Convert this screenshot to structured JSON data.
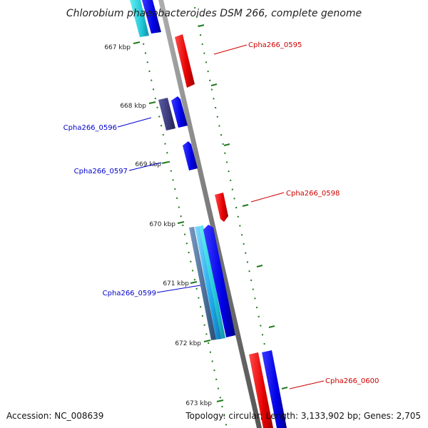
{
  "title": "Chlorobium phaeobacteroides DSM 266, complete genome",
  "footer": {
    "accession": "Accession: NC_008639",
    "summary": "Topology: circular; Length: 3,133,902 bp; Genes: 2,705"
  },
  "colors": {
    "backbone": "#8a8a8a",
    "tick": "#1f7a1f",
    "forward_gene": "#e60000",
    "reverse_gene": "#0000e6",
    "label_forward": "#cc0000",
    "label_reverse": "#0000cc"
  },
  "ticks": [
    {
      "label": "667 kbp",
      "name": "tick-667"
    },
    {
      "label": "668 kbp",
      "name": "tick-668"
    },
    {
      "label": "669 kbp",
      "name": "tick-669"
    },
    {
      "label": "670 kbp",
      "name": "tick-670"
    },
    {
      "label": "671 kbp",
      "name": "tick-671"
    },
    {
      "label": "672 kbp",
      "name": "tick-672"
    },
    {
      "label": "673 kbp",
      "name": "tick-673"
    }
  ],
  "gene_labels": [
    {
      "id": "Cpha266_0595",
      "strand": "forward"
    },
    {
      "id": "Cpha266_0596",
      "strand": "reverse"
    },
    {
      "id": "Cpha266_0597",
      "strand": "reverse"
    },
    {
      "id": "Cpha266_0598",
      "strand": "forward"
    },
    {
      "id": "Cpha266_0599",
      "strand": "reverse"
    },
    {
      "id": "Cpha266_0600",
      "strand": "forward"
    }
  ]
}
